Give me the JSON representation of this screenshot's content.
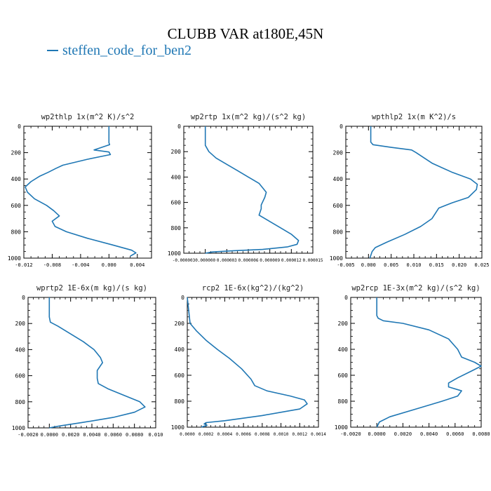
{
  "page": {
    "title": "CLUBB VAR at180E,45N",
    "line_color": "#1f77b4",
    "legend": {
      "label": "steffen_code_for_ben2"
    }
  },
  "chart_data": [
    {
      "type": "line",
      "title": "wp2thlp   1x(m^2 K)/s^2",
      "xlim": [
        -0.012,
        0.006
      ],
      "ylim": [
        0,
        1000
      ],
      "y_inverted": true,
      "xticks": [
        -0.012,
        -0.008,
        -0.004,
        0.0,
        0.004
      ],
      "xtick_labels": [
        "-0.012",
        "-0.008",
        "-0.004",
        "0.000",
        "0.004"
      ],
      "yticks": [
        0,
        200,
        400,
        600,
        800,
        1000
      ],
      "ytick_labels": [
        "0",
        "200",
        "400",
        "600",
        "800",
        "1000"
      ],
      "series": [
        {
          "x": [
            0.0,
            0.0,
            0.0,
            0.0,
            0.0001,
            -0.0021,
            0.0,
            0.0002,
            -0.003,
            -0.0065,
            -0.0075,
            -0.0086,
            -0.0098,
            -0.011,
            -0.0118,
            -0.0115,
            -0.0105,
            -0.0088,
            -0.0078,
            -0.007,
            -0.008,
            -0.0076,
            -0.006,
            -0.003,
            0.0005,
            0.0032,
            0.0038,
            0.003
          ],
          "y": [
            0,
            50,
            100,
            125,
            140,
            180,
            195,
            215,
            250,
            295,
            320,
            350,
            380,
            420,
            460,
            500,
            550,
            600,
            640,
            680,
            720,
            760,
            800,
            850,
            900,
            940,
            960,
            985
          ]
        }
      ]
    },
    {
      "type": "line",
      "title": "wp2rtp   1x(m^2 kg)/(s^2 kg)",
      "xlim": [
        -3e-06,
        1.5e-05
      ],
      "ylim": [
        0,
        1000
      ],
      "y_inverted": true,
      "xticks": [
        -3e-06,
        0.0,
        3e-06,
        6e-06,
        9e-06,
        1.2e-05,
        1.5e-05
      ],
      "xtick_labels": [
        "-0.000003",
        "0.000000",
        "0.000003",
        "0.000006",
        "0.000009",
        "0.000012",
        "0.000015"
      ],
      "yticks": [
        0,
        200,
        400,
        600,
        800,
        1000
      ],
      "ytick_labels": [
        "0",
        "200",
        "400",
        "600",
        "800",
        "1000"
      ],
      "series": [
        {
          "x": [
            0.0,
            0.0,
            0.0,
            0.0,
            5e-07,
            1.5e-06,
            3e-06,
            4.5e-06,
            6e-06,
            7.5e-06,
            8.5e-06,
            8.3e-06,
            7.8e-06,
            7.8e-06,
            7.5e-06,
            9e-06,
            1.05e-05,
            1.2e-05,
            1.3e-05,
            1.28e-05,
            1.15e-05,
            8e-06,
            4e-06,
            1e-06,
            0.0
          ],
          "y": [
            0,
            50,
            100,
            150,
            200,
            250,
            300,
            350,
            400,
            450,
            520,
            560,
            620,
            650,
            700,
            750,
            800,
            850,
            900,
            930,
            950,
            970,
            980,
            990,
            1000
          ]
        }
      ]
    },
    {
      "type": "line",
      "title": "wpthlp2   1x(m K^2)/s",
      "xlim": [
        -0.005,
        0.025
      ],
      "ylim": [
        0,
        1000
      ],
      "y_inverted": true,
      "xticks": [
        -0.005,
        0.0,
        0.005,
        0.01,
        0.015,
        0.02,
        0.025
      ],
      "xtick_labels": [
        "-0.005",
        "0.000",
        "0.005",
        "0.010",
        "0.015",
        "0.020",
        "0.025"
      ],
      "yticks": [
        0,
        200,
        400,
        600,
        800,
        1000
      ],
      "ytick_labels": [
        "0",
        "200",
        "400",
        "600",
        "800",
        "1000"
      ],
      "series": [
        {
          "x": [
            0.0005,
            0.0005,
            0.0005,
            0.0005,
            0.001,
            0.005,
            0.0095,
            0.0105,
            0.014,
            0.0185,
            0.0225,
            0.024,
            0.0238,
            0.022,
            0.0185,
            0.0155,
            0.014,
            0.0115,
            0.008,
            0.004,
            0.0015,
            0.0008,
            0.0005,
            0.0003
          ],
          "y": [
            0,
            50,
            100,
            120,
            140,
            160,
            180,
            200,
            280,
            350,
            400,
            440,
            480,
            540,
            580,
            620,
            700,
            760,
            820,
            880,
            920,
            950,
            980,
            1000
          ]
        }
      ]
    },
    {
      "type": "line",
      "title": "wprtp2   1E-6x(m kg)/(s kg)",
      "xlim": [
        -0.002,
        0.01
      ],
      "ylim": [
        0,
        1000
      ],
      "y_inverted": true,
      "xticks": [
        -0.002,
        0.0,
        0.002,
        0.004,
        0.006,
        0.008,
        0.01
      ],
      "xtick_labels": [
        "-0.0020",
        "0.0000",
        "0.0020",
        "0.0040",
        "0.0060",
        "0.0080",
        "0.010"
      ],
      "yticks": [
        0,
        200,
        400,
        600,
        800,
        1000
      ],
      "ytick_labels": [
        "0",
        "200",
        "400",
        "600",
        "800",
        "1000"
      ],
      "series": [
        {
          "x": [
            0.0,
            0.0,
            0.0,
            0.0,
            0.0001,
            0.0008,
            0.002,
            0.0032,
            0.0042,
            0.0048,
            0.005,
            0.0045,
            0.0045,
            0.0046,
            0.0055,
            0.007,
            0.0085,
            0.009,
            0.008,
            0.006,
            0.003,
            0.001,
            0.0
          ],
          "y": [
            0,
            50,
            100,
            150,
            190,
            220,
            280,
            340,
            400,
            460,
            500,
            560,
            620,
            660,
            700,
            750,
            800,
            840,
            880,
            920,
            960,
            985,
            1000
          ]
        }
      ]
    },
    {
      "type": "line",
      "title": "rcp2   1E-6x(kg^2)/(kg^2)",
      "xlim": [
        0.0,
        0.0014
      ],
      "ylim": [
        0,
        1000
      ],
      "y_inverted": true,
      "xticks": [
        0.0,
        0.0002,
        0.0004,
        0.0006,
        0.0008,
        0.001,
        0.0012,
        0.0014
      ],
      "xtick_labels": [
        "0.0000",
        "0.0002",
        "0.0004",
        "0.0006",
        "0.0008",
        "0.0010",
        "0.0012",
        "0.0014"
      ],
      "yticks": [
        0,
        200,
        400,
        600,
        800,
        1000
      ],
      "ytick_labels": [
        "0",
        "200",
        "400",
        "600",
        "800",
        "1000"
      ],
      "series": [
        {
          "x": [
            0.0,
            3e-05,
            0.0001,
            0.0002,
            0.00032,
            0.00045,
            0.00058,
            0.00068,
            0.00072,
            0.00085,
            0.0011,
            0.00125,
            0.00128,
            0.0012,
            0.0008,
            0.0004,
            0.0002,
            0.00018,
            0.00021,
            0.00015
          ],
          "y": [
            0,
            200,
            260,
            330,
            400,
            470,
            550,
            630,
            680,
            720,
            760,
            790,
            820,
            860,
            910,
            950,
            965,
            975,
            985,
            1000
          ]
        }
      ]
    },
    {
      "type": "line",
      "title": "wp2rcp   1E-3x(m^2 kg)/(s^2 kg)",
      "xlim": [
        -0.002,
        0.008
      ],
      "ylim": [
        0,
        1000
      ],
      "y_inverted": true,
      "xticks": [
        -0.002,
        0.0,
        0.002,
        0.004,
        0.006,
        0.008
      ],
      "xtick_labels": [
        "-0.0020",
        "0.0000",
        "0.0020",
        "0.0040",
        "0.0060",
        "0.0080"
      ],
      "yticks": [
        0,
        200,
        400,
        600,
        800,
        1000
      ],
      "ytick_labels": [
        "0",
        "200",
        "400",
        "600",
        "800",
        "1000"
      ],
      "series": [
        {
          "x": [
            0.0,
            0.0,
            0.0,
            0.0001,
            0.0005,
            0.002,
            0.004,
            0.0055,
            0.0062,
            0.0065,
            0.0075,
            0.008,
            0.0072,
            0.0062,
            0.0055,
            0.0055,
            0.0065,
            0.0062,
            0.005,
            0.003,
            0.001,
            0.0002,
            0.0
          ],
          "y": [
            0,
            100,
            140,
            160,
            180,
            200,
            250,
            320,
            400,
            460,
            500,
            530,
            570,
            620,
            660,
            690,
            720,
            760,
            800,
            860,
            920,
            960,
            1000
          ]
        }
      ]
    }
  ]
}
